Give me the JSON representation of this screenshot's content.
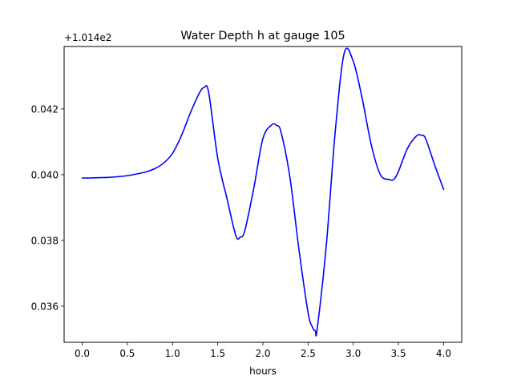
{
  "chart_data": {
    "type": "line",
    "title": "Water Depth h at gauge 105",
    "xlabel": "hours",
    "ylabel": "",
    "offset_text": "+1.014e2",
    "y_offset": 101.4,
    "xlim": [
      -0.2,
      4.2
    ],
    "ylim": [
      0.0349,
      0.0439
    ],
    "xticks": [
      0.0,
      0.5,
      1.0,
      1.5,
      2.0,
      2.5,
      3.0,
      3.5,
      4.0
    ],
    "xtick_labels": [
      "0.0",
      "0.5",
      "1.0",
      "1.5",
      "2.0",
      "2.5",
      "3.0",
      "3.5",
      "4.0"
    ],
    "yticks": [
      0.036,
      0.038,
      0.04,
      0.042
    ],
    "ytick_labels": [
      "0.036",
      "0.038",
      "0.040",
      "0.042"
    ],
    "grid": false,
    "series": [
      {
        "color": "#0000ff",
        "x": [
          0.0,
          0.1,
          0.2,
          0.3,
          0.4,
          0.5,
          0.6,
          0.7,
          0.8,
          0.9,
          1.0,
          1.1,
          1.2,
          1.3,
          1.35,
          1.4,
          1.5,
          1.6,
          1.7,
          1.75,
          1.8,
          1.9,
          2.0,
          2.1,
          2.15,
          2.2,
          2.3,
          2.4,
          2.5,
          2.55,
          2.58,
          2.6,
          2.7,
          2.8,
          2.9,
          3.0,
          3.1,
          3.2,
          3.3,
          3.4,
          3.45,
          3.5,
          3.6,
          3.7,
          3.75,
          3.8,
          3.9,
          4.0
        ],
        "y": [
          0.0399,
          0.0399,
          0.03991,
          0.03992,
          0.03994,
          0.03997,
          0.04002,
          0.04008,
          0.04018,
          0.04035,
          0.04065,
          0.0412,
          0.0419,
          0.0425,
          0.04265,
          0.0425,
          0.0405,
          0.0393,
          0.03815,
          0.0381,
          0.0383,
          0.0396,
          0.0411,
          0.04152,
          0.0415,
          0.0413,
          0.0399,
          0.0377,
          0.0358,
          0.03535,
          0.03525,
          0.0353,
          0.0378,
          0.0413,
          0.0437,
          0.04345,
          0.0423,
          0.0409,
          0.04,
          0.03985,
          0.03986,
          0.0401,
          0.0408,
          0.04118,
          0.0412,
          0.0411,
          0.0403,
          0.03955
        ]
      }
    ]
  }
}
